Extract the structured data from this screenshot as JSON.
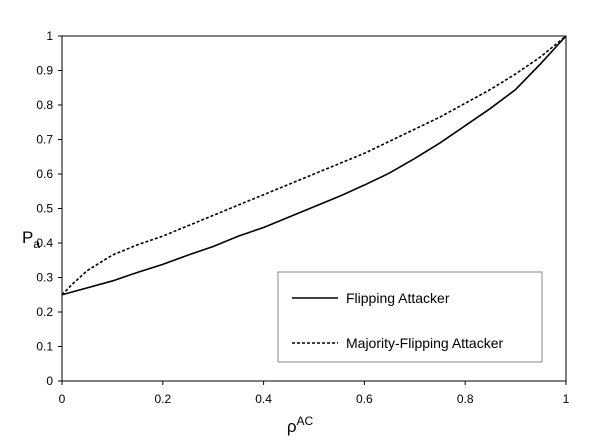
{
  "chart_data": {
    "type": "line",
    "ylabel_base": "P",
    "ylabel_subscript": "a",
    "xlabel_base": "ρ",
    "xlabel_superscript": "AC",
    "xlim": [
      0,
      1
    ],
    "xticks": [
      0,
      0.2,
      0.4,
      0.6,
      0.8,
      1
    ],
    "ylim": [
      0,
      1
    ],
    "yticks": [
      0,
      0.1,
      0.2,
      0.3,
      0.4,
      0.5,
      0.6,
      0.7,
      0.8,
      0.9,
      1
    ],
    "legend": "lower right",
    "grid": false,
    "series": [
      {
        "name": "Flipping Attacker",
        "color": "#000000",
        "dash": "solid",
        "x": [
          0,
          0.05,
          0.1,
          0.15,
          0.2,
          0.25,
          0.3,
          0.35,
          0.4,
          0.45,
          0.5,
          0.55,
          0.6,
          0.65,
          0.7,
          0.75,
          0.8,
          0.85,
          0.9,
          0.95,
          1
        ],
        "values": [
          0.25,
          0.27,
          0.29,
          0.315,
          0.338,
          0.365,
          0.39,
          0.42,
          0.445,
          0.475,
          0.505,
          0.535,
          0.568,
          0.603,
          0.645,
          0.69,
          0.74,
          0.79,
          0.845,
          0.92,
          1
        ]
      },
      {
        "name": "Majority-Flipping Attacker",
        "color": "#000000",
        "dash": "dotted",
        "x": [
          0,
          0.02,
          0.05,
          0.1,
          0.15,
          0.2,
          0.25,
          0.3,
          0.35,
          0.4,
          0.45,
          0.5,
          0.55,
          0.6,
          0.65,
          0.7,
          0.75,
          0.8,
          0.85,
          0.9,
          0.95,
          1
        ],
        "values": [
          0.25,
          0.28,
          0.32,
          0.365,
          0.395,
          0.42,
          0.45,
          0.48,
          0.51,
          0.54,
          0.57,
          0.6,
          0.63,
          0.66,
          0.695,
          0.73,
          0.765,
          0.805,
          0.845,
          0.89,
          0.94,
          1
        ]
      }
    ]
  }
}
